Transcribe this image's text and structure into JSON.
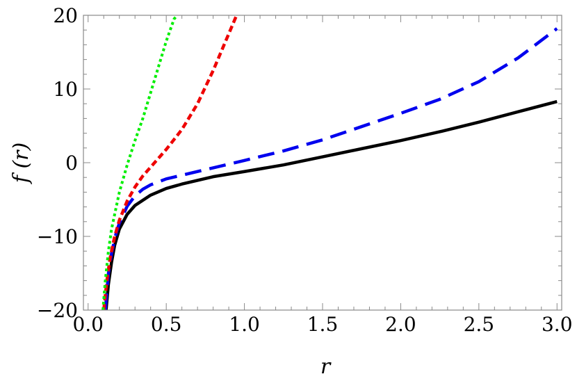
{
  "chart_data": {
    "type": "line",
    "xlabel": "r",
    "ylabel": "f (r)",
    "xlim": [
      -0.03,
      3.03
    ],
    "ylim": [
      -20,
      20
    ],
    "x_ticks": [
      {
        "value": 0.0,
        "label": "0.0"
      },
      {
        "value": 0.5,
        "label": "0.5"
      },
      {
        "value": 1.0,
        "label": "1.0"
      },
      {
        "value": 1.5,
        "label": "1.5"
      },
      {
        "value": 2.0,
        "label": "2.0"
      },
      {
        "value": 2.5,
        "label": "2.5"
      },
      {
        "value": 3.0,
        "label": "3.0"
      }
    ],
    "y_ticks": [
      {
        "value": -20,
        "label": "−20"
      },
      {
        "value": -10,
        "label": "−10"
      },
      {
        "value": 0,
        "label": "0"
      },
      {
        "value": 10,
        "label": "10"
      },
      {
        "value": 20,
        "label": "20"
      }
    ],
    "grid": false,
    "legend": "none",
    "series": [
      {
        "color": "#000000",
        "style": "solid",
        "points": [
          [
            0.115,
            -20
          ],
          [
            0.13,
            -16.5
          ],
          [
            0.15,
            -13.5
          ],
          [
            0.17,
            -11.2
          ],
          [
            0.2,
            -9.0
          ],
          [
            0.25,
            -7.0
          ],
          [
            0.3,
            -5.8
          ],
          [
            0.4,
            -4.4
          ],
          [
            0.5,
            -3.5
          ],
          [
            0.6,
            -2.9
          ],
          [
            0.7,
            -2.4
          ],
          [
            0.8,
            -1.9
          ],
          [
            1.0,
            -1.2
          ],
          [
            1.25,
            -0.3
          ],
          [
            1.5,
            0.8
          ],
          [
            1.75,
            1.9
          ],
          [
            2.0,
            3.0
          ],
          [
            2.25,
            4.2
          ],
          [
            2.5,
            5.5
          ],
          [
            2.75,
            6.9
          ],
          [
            3.0,
            8.3
          ]
        ]
      },
      {
        "color": "#0000ee",
        "style": "dashed",
        "points": [
          [
            0.11,
            -20
          ],
          [
            0.13,
            -15.0
          ],
          [
            0.15,
            -12.3
          ],
          [
            0.18,
            -9.5
          ],
          [
            0.2,
            -8.2
          ],
          [
            0.25,
            -5.9
          ],
          [
            0.3,
            -4.5
          ],
          [
            0.35,
            -3.6
          ],
          [
            0.4,
            -3.0
          ],
          [
            0.5,
            -2.2
          ],
          [
            0.6,
            -1.7
          ],
          [
            0.7,
            -1.2
          ],
          [
            0.8,
            -0.7
          ],
          [
            1.0,
            0.3
          ],
          [
            1.25,
            1.6
          ],
          [
            1.5,
            3.1
          ],
          [
            1.75,
            4.9
          ],
          [
            2.0,
            6.7
          ],
          [
            2.25,
            8.6
          ],
          [
            2.5,
            11.0
          ],
          [
            2.75,
            14.2
          ],
          [
            3.0,
            18.2
          ]
        ]
      },
      {
        "color": "#ee0000",
        "style": "dashed-short",
        "points": [
          [
            0.1,
            -20
          ],
          [
            0.12,
            -16.0
          ],
          [
            0.14,
            -13.0
          ],
          [
            0.17,
            -10.0
          ],
          [
            0.2,
            -7.8
          ],
          [
            0.25,
            -5.2
          ],
          [
            0.3,
            -3.3
          ],
          [
            0.35,
            -1.8
          ],
          [
            0.4,
            -0.6
          ],
          [
            0.5,
            1.8
          ],
          [
            0.6,
            4.5
          ],
          [
            0.7,
            8.0
          ],
          [
            0.8,
            12.5
          ],
          [
            0.9,
            17.5
          ],
          [
            0.95,
            20.0
          ]
        ]
      },
      {
        "color": "#00ee00",
        "style": "dotted",
        "points": [
          [
            0.095,
            -20
          ],
          [
            0.11,
            -16.0
          ],
          [
            0.13,
            -12.0
          ],
          [
            0.15,
            -9.0
          ],
          [
            0.2,
            -4.0
          ],
          [
            0.25,
            -0.3
          ],
          [
            0.3,
            3.0
          ],
          [
            0.35,
            6.0
          ],
          [
            0.4,
            9.5
          ],
          [
            0.45,
            13.0
          ],
          [
            0.5,
            16.5
          ],
          [
            0.55,
            19.5
          ],
          [
            0.57,
            20.0
          ]
        ]
      }
    ]
  }
}
